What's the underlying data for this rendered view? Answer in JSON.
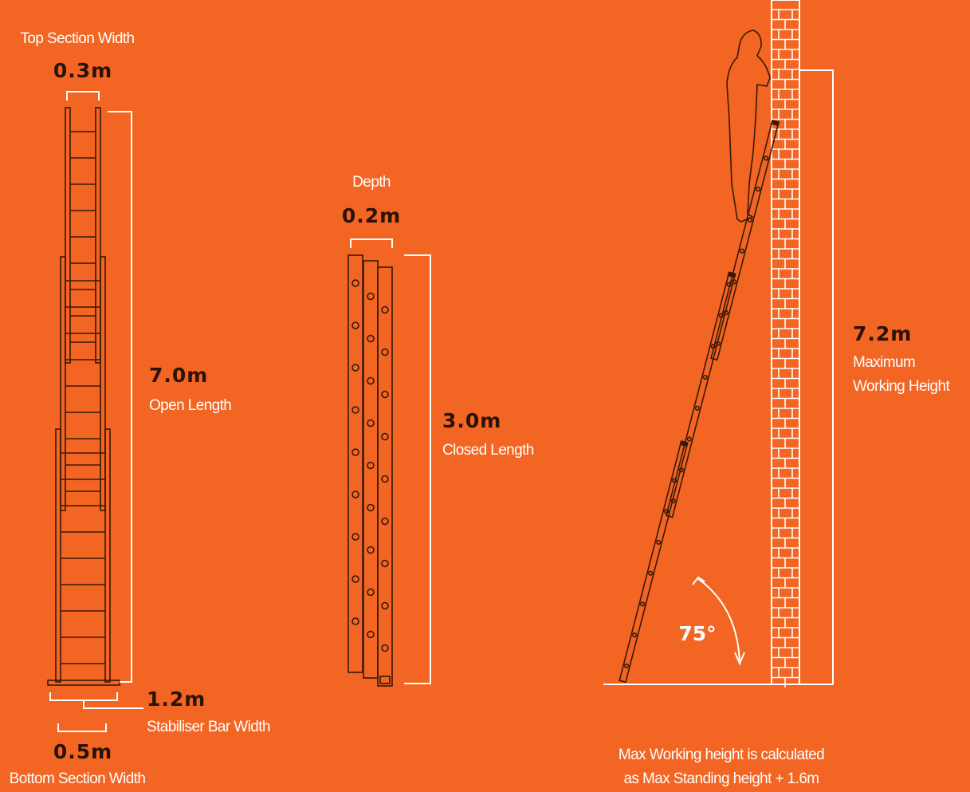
{
  "top_section": {
    "label": "Top Section Width",
    "value": "0.3m"
  },
  "depth": {
    "label": "Depth",
    "value": "0.2m"
  },
  "open_length": {
    "value": "7.0m",
    "label": "Open Length"
  },
  "closed_length": {
    "value": "3.0m",
    "label": "Closed Length"
  },
  "stabiliser": {
    "value": "1.2m",
    "label": "Stabiliser Bar Width"
  },
  "bottom_section": {
    "value": "0.5m",
    "label": "Bottom Section Width"
  },
  "max_height": {
    "value": "7.2m",
    "label_lines": [
      "Maximum",
      "Working Height"
    ]
  },
  "angle": "75°",
  "note": [
    "Max Working height is calculated",
    "as Max Standing height + 1.6m"
  ]
}
